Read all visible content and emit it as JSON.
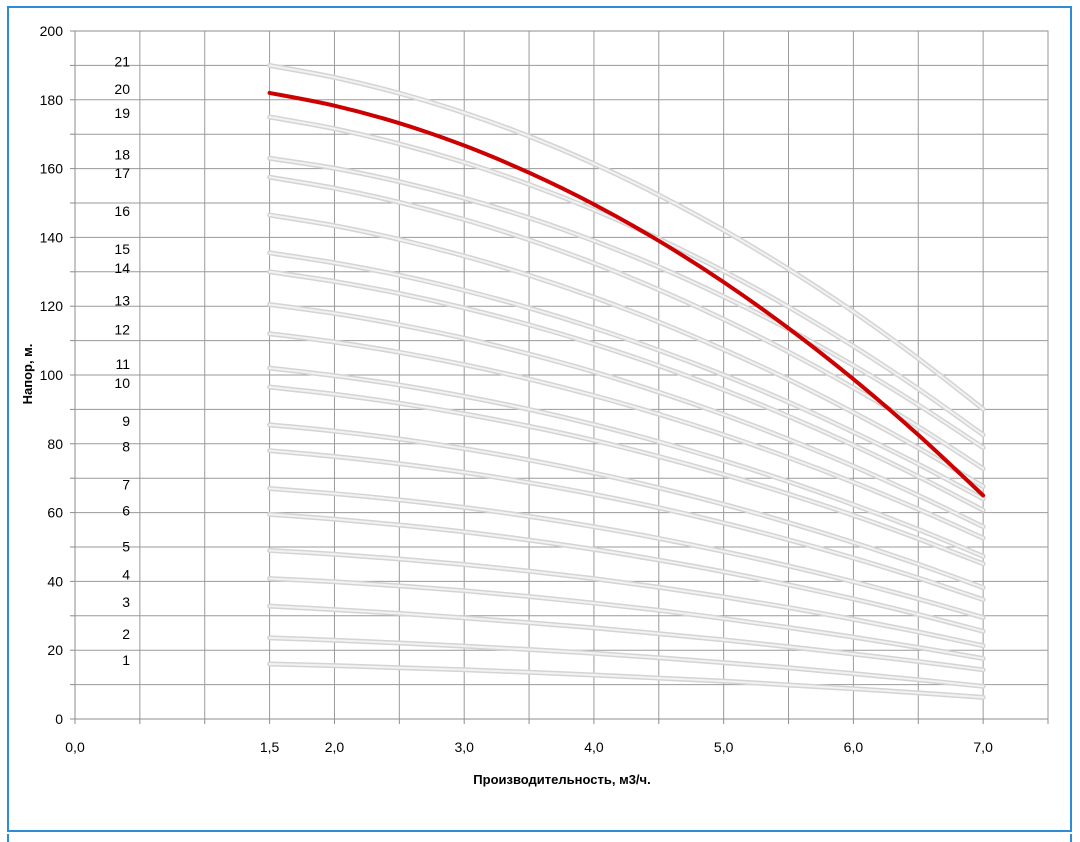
{
  "chart_data": {
    "type": "line",
    "title": "",
    "xlabel": "Производительность, м3/ч.",
    "ylabel": "Напор, м.",
    "xlim": [
      0,
      7.5
    ],
    "ylim": [
      0,
      200
    ],
    "grid": true,
    "legend": "none",
    "x_ticks": [
      0.0,
      1.5,
      2.0,
      3.0,
      4.0,
      5.0,
      6.0,
      7.0
    ],
    "x_tick_labels": [
      "0,0",
      "1,5",
      "2,0",
      "3,0",
      "4,0",
      "5,0",
      "6,0",
      "7,0"
    ],
    "y_ticks": [
      0,
      20,
      40,
      60,
      80,
      100,
      120,
      140,
      160,
      180,
      200
    ],
    "y_tick_labels": [
      "0",
      "20",
      "40",
      "60",
      "80",
      "100",
      "120",
      "140",
      "160",
      "180",
      "200"
    ],
    "x": [
      1.5,
      2.0,
      2.5,
      3.0,
      3.5,
      4.0,
      4.5,
      5.0,
      5.5,
      6.0,
      6.5,
      7.0
    ],
    "series": [
      {
        "label": "1",
        "values": [
          16.0,
          15.5,
          14.9,
          14.3,
          13.6,
          12.8,
          11.9,
          11.0,
          9.9,
          8.8,
          7.6,
          6.3
        ],
        "color": "#c8c8c8"
      },
      {
        "label": "2",
        "values": [
          23.6,
          22.9,
          22.1,
          21.2,
          20.2,
          19.1,
          17.8,
          16.4,
          14.9,
          13.2,
          11.4,
          9.5
        ],
        "color": "#c8c8c8"
      },
      {
        "label": "3",
        "values": [
          32.8,
          31.8,
          30.7,
          29.4,
          28.0,
          26.5,
          24.8,
          23.0,
          21.0,
          18.9,
          16.7,
          14.3
        ],
        "color": "#c8c8c8"
      },
      {
        "label": "4",
        "values": [
          40.8,
          39.9,
          38.7,
          37.3,
          35.6,
          33.7,
          31.6,
          29.2,
          26.6,
          23.8,
          20.8,
          17.6
        ],
        "color": "#c8c8c8"
      },
      {
        "label": "5",
        "values": [
          49.0,
          47.9,
          46.5,
          44.9,
          43.0,
          40.8,
          38.3,
          35.5,
          32.4,
          29.0,
          25.3,
          21.3
        ],
        "color": "#c8c8c8"
      },
      {
        "label": "6",
        "values": [
          59.5,
          58.1,
          56.4,
          54.4,
          52.0,
          49.3,
          46.2,
          42.8,
          39.0,
          34.9,
          30.4,
          25.5
        ],
        "color": "#c8c8c8"
      },
      {
        "label": "7",
        "values": [
          67.0,
          65.5,
          63.7,
          61.5,
          58.9,
          55.9,
          52.5,
          48.7,
          44.5,
          39.9,
          34.9,
          29.5
        ],
        "color": "#c8c8c8"
      },
      {
        "label": "8",
        "values": [
          78.0,
          76.3,
          74.2,
          71.7,
          68.7,
          65.3,
          61.4,
          57.0,
          52.1,
          46.8,
          41.0,
          34.7
        ],
        "color": "#c8c8c8"
      },
      {
        "label": "9",
        "values": [
          85.5,
          83.7,
          81.4,
          78.6,
          75.3,
          71.5,
          67.2,
          62.4,
          57.1,
          51.3,
          45.0,
          38.2
        ],
        "color": "#c8c8c8"
      },
      {
        "label": "10",
        "values": [
          96.5,
          94.4,
          91.8,
          88.7,
          85.1,
          81.0,
          76.3,
          71.1,
          65.4,
          59.2,
          52.4,
          45.1
        ],
        "color": "#c8c8c8"
      },
      {
        "label": "11",
        "values": [
          102.0,
          99.8,
          97.1,
          93.8,
          90.0,
          85.6,
          80.6,
          75.1,
          69.0,
          62.3,
          55.1,
          47.3
        ],
        "color": "#c8c8c8"
      },
      {
        "label": "12",
        "values": [
          112.0,
          109.6,
          106.6,
          103.0,
          98.8,
          94.0,
          88.6,
          82.6,
          76.0,
          68.8,
          61.0,
          52.6
        ],
        "color": "#c8c8c8"
      },
      {
        "label": "13",
        "values": [
          120.5,
          117.9,
          114.6,
          110.7,
          106.1,
          100.9,
          95.0,
          88.5,
          81.3,
          73.5,
          65.0,
          55.9
        ],
        "color": "#c8c8c8"
      },
      {
        "label": "14",
        "values": [
          130.0,
          127.2,
          123.7,
          119.5,
          114.6,
          109.0,
          102.7,
          95.7,
          88.0,
          79.6,
          70.5,
          60.7
        ],
        "color": "#c8c8c8"
      },
      {
        "label": "15",
        "values": [
          135.5,
          132.6,
          129.0,
          124.6,
          119.5,
          113.7,
          107.2,
          100.0,
          92.1,
          83.4,
          74.1,
          64.0
        ],
        "color": "#c8c8c8"
      },
      {
        "label": "16",
        "values": [
          146.5,
          143.4,
          139.4,
          134.6,
          129.0,
          122.6,
          115.4,
          107.4,
          98.7,
          89.1,
          78.8,
          67.6
        ],
        "color": "#c8c8c8"
      },
      {
        "label": "17",
        "values": [
          157.5,
          154.3,
          150.2,
          145.2,
          139.3,
          132.5,
          124.8,
          116.2,
          106.7,
          96.3,
          85.0,
          72.8
        ],
        "color": "#c8c8c8"
      },
      {
        "label": "18",
        "values": [
          163.0,
          160.1,
          156.2,
          151.4,
          145.7,
          139.0,
          131.4,
          122.8,
          113.3,
          102.8,
          91.3,
          78.9
        ],
        "color": "#c8c8c8"
      },
      {
        "label": "19",
        "values": [
          175.0,
          171.6,
          167.2,
          161.8,
          155.4,
          148.0,
          139.6,
          130.2,
          119.8,
          108.4,
          96.0,
          82.6
        ],
        "color": "#c8c8c8"
      },
      {
        "label": "20",
        "values": [
          182.0,
          178.3,
          173.2,
          166.7,
          158.8,
          149.6,
          139.0,
          127.0,
          113.6,
          98.8,
          82.6,
          65.0
        ],
        "color": "#cc0000",
        "highlighted": true
      },
      {
        "label": "21",
        "values": [
          190.0,
          186.5,
          181.9,
          176.2,
          169.4,
          161.4,
          152.3,
          142.1,
          130.8,
          118.4,
          104.8,
          90.1
        ],
        "color": "#c8c8c8"
      }
    ]
  }
}
